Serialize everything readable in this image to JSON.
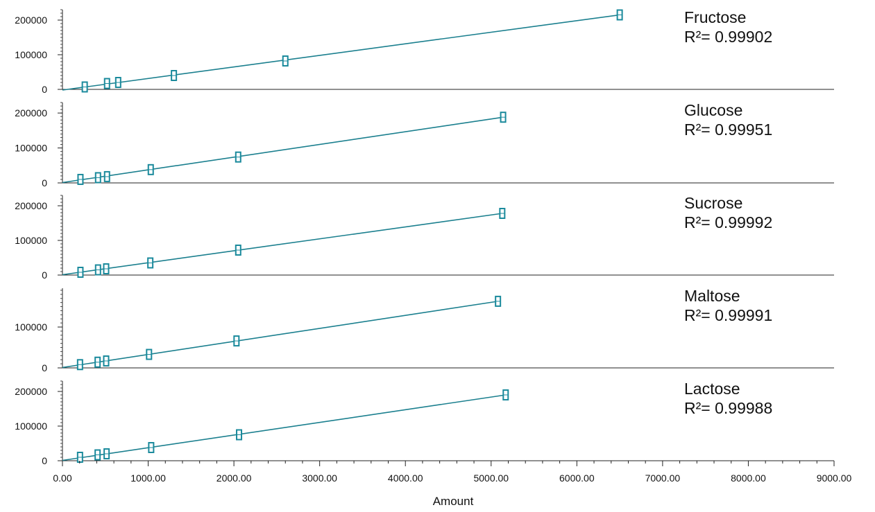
{
  "chart_data": {
    "type": "scatter",
    "xlabel": "Amount",
    "xlim": [
      0,
      9000
    ],
    "x_ticks": [
      "0.00",
      "1000.00",
      "2000.00",
      "3000.00",
      "4000.00",
      "5000.00",
      "6000.00",
      "7000.00",
      "8000.00",
      "9000.00"
    ],
    "marker_color": "#1a8a9c",
    "line_color": "#1a7f8e",
    "grid": false,
    "panels": [
      {
        "name": "Fructose",
        "r2_label": "R²= 0.99902",
        "ylim": [
          0,
          230000
        ],
        "y_ticks": [
          "0",
          "100000",
          "200000"
        ],
        "points": [
          {
            "x": 260,
            "y": 7000
          },
          {
            "x": 520,
            "y": 17000
          },
          {
            "x": 650,
            "y": 20000
          },
          {
            "x": 1300,
            "y": 40000
          },
          {
            "x": 2600,
            "y": 82000
          },
          {
            "x": 6500,
            "y": 215000
          }
        ],
        "fit": {
          "x": [
            0,
            6500
          ],
          "y": [
            -2000,
            215000
          ]
        }
      },
      {
        "name": "Glucose",
        "r2_label": "R²= 0.99951",
        "ylim": [
          0,
          230000
        ],
        "y_ticks": [
          "0",
          "100000",
          "200000"
        ],
        "points": [
          {
            "x": 210,
            "y": 10000
          },
          {
            "x": 415,
            "y": 15000
          },
          {
            "x": 520,
            "y": 18000
          },
          {
            "x": 1030,
            "y": 38000
          },
          {
            "x": 2050,
            "y": 74000
          },
          {
            "x": 5140,
            "y": 188000
          }
        ],
        "fit": {
          "x": [
            0,
            5140
          ],
          "y": [
            1000,
            188000
          ]
        }
      },
      {
        "name": "Sucrose",
        "r2_label": "R²= 0.99992",
        "ylim": [
          0,
          230000
        ],
        "y_ticks": [
          "0",
          "100000",
          "200000"
        ],
        "points": [
          {
            "x": 210,
            "y": 8000
          },
          {
            "x": 415,
            "y": 15000
          },
          {
            "x": 510,
            "y": 18000
          },
          {
            "x": 1025,
            "y": 35000
          },
          {
            "x": 2050,
            "y": 72000
          },
          {
            "x": 5130,
            "y": 178000
          }
        ],
        "fit": {
          "x": [
            0,
            5130
          ],
          "y": [
            1000,
            178000
          ]
        }
      },
      {
        "name": "Maltose",
        "r2_label": "R²= 0.99991",
        "ylim": [
          0,
          195000
        ],
        "y_ticks": [
          "0",
          "100000"
        ],
        "points": [
          {
            "x": 205,
            "y": 8000
          },
          {
            "x": 410,
            "y": 14000
          },
          {
            "x": 510,
            "y": 17000
          },
          {
            "x": 1010,
            "y": 33000
          },
          {
            "x": 2030,
            "y": 66000
          },
          {
            "x": 5080,
            "y": 163000
          }
        ],
        "fit": {
          "x": [
            0,
            5080
          ],
          "y": [
            1000,
            163000
          ]
        }
      },
      {
        "name": "Lactose",
        "r2_label": "R²= 0.99988",
        "ylim": [
          0,
          230000
        ],
        "y_ticks": [
          "0",
          "100000",
          "200000"
        ],
        "points": [
          {
            "x": 205,
            "y": 10000
          },
          {
            "x": 410,
            "y": 17000
          },
          {
            "x": 515,
            "y": 20000
          },
          {
            "x": 1035,
            "y": 38000
          },
          {
            "x": 2060,
            "y": 75000
          },
          {
            "x": 5170,
            "y": 190000
          }
        ],
        "fit": {
          "x": [
            0,
            5170
          ],
          "y": [
            1000,
            190000
          ]
        }
      }
    ]
  }
}
